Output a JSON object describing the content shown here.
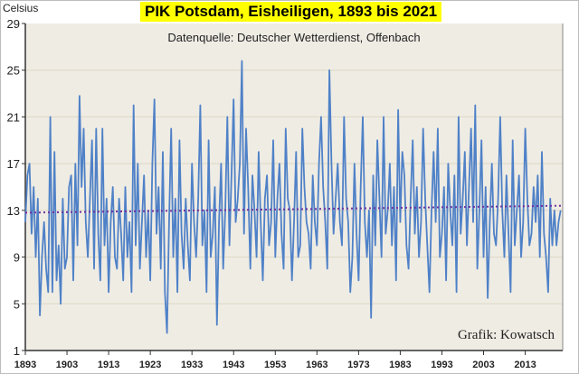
{
  "chart_data": {
    "type": "line",
    "title": "PIK Potsdam, Eisheiligen, 1893 bis 2021",
    "subtitle": "Datenquelle: Deutscher Wetterdienst, Offenbach",
    "credit": "Grafik: Kowatsch",
    "ylabel": "Celsius",
    "xlabel": "",
    "xlim": [
      1893,
      2022
    ],
    "ylim": [
      1,
      29
    ],
    "yticks": [
      1,
      5,
      9,
      13,
      17,
      21,
      25,
      29
    ],
    "xticks": [
      1893,
      1903,
      1913,
      1923,
      1933,
      1943,
      1953,
      1963,
      1973,
      1983,
      1993,
      2003,
      2013
    ],
    "grid": "horizontal",
    "colors": {
      "series": "#4f81c7",
      "trend": "#7030a0",
      "plot_bg": "#efece4",
      "title_bg": "#ffff00"
    },
    "series": [
      {
        "values": [
          12,
          16,
          17,
          11,
          15,
          9,
          14,
          4,
          9,
          12,
          8,
          6,
          21,
          6,
          18,
          7,
          10,
          5,
          14,
          8,
          9,
          15,
          16,
          7,
          17,
          10,
          22.8,
          15,
          20,
          12,
          9,
          14,
          19,
          8,
          20,
          11,
          7,
          20,
          10,
          14,
          6,
          12,
          15,
          9,
          8,
          14,
          11,
          7,
          15,
          9,
          12,
          6,
          22,
          10,
          17,
          8,
          12,
          16,
          9,
          13,
          7,
          17,
          22.5,
          11,
          15,
          8,
          18,
          6,
          2.5,
          12,
          20,
          9,
          14,
          6,
          19,
          11,
          8,
          14,
          10,
          7,
          17,
          12,
          9,
          14,
          22,
          10,
          13,
          6,
          19,
          9,
          11,
          15,
          3.2,
          12,
          17,
          8,
          13,
          21,
          10,
          16,
          22.5,
          12,
          14,
          17,
          25.8,
          11,
          20,
          15,
          8,
          16,
          13,
          9,
          18,
          12,
          7,
          14,
          16,
          10,
          12,
          19,
          9,
          14,
          17,
          11,
          8,
          20,
          14,
          13,
          7,
          12,
          18,
          9,
          10,
          20,
          15,
          12,
          11,
          8,
          16,
          12,
          10,
          17,
          21,
          15,
          12,
          8,
          25,
          17,
          11,
          14,
          17,
          12,
          10,
          21,
          14,
          12,
          6,
          9,
          17,
          11,
          7,
          15,
          21,
          12,
          9,
          13,
          3.8,
          16,
          10,
          19,
          14,
          9,
          21,
          11,
          13,
          17,
          10,
          15,
          7,
          21.6,
          12,
          18,
          16,
          10,
          8,
          14,
          19,
          11,
          15,
          9,
          12,
          20,
          14,
          10,
          6,
          13,
          18,
          12,
          20,
          9,
          11,
          15,
          7,
          17,
          13,
          10,
          16,
          6,
          21,
          11,
          14,
          18,
          10,
          15,
          20,
          12,
          22,
          8,
          13,
          19,
          9,
          15,
          5.5,
          12,
          17,
          11,
          10,
          14,
          21,
          13,
          9,
          16,
          11,
          6,
          19,
          10,
          13,
          16,
          9,
          12,
          20,
          14,
          10,
          11,
          15,
          12,
          16,
          9,
          18,
          11,
          9,
          6,
          14,
          10,
          13,
          10,
          12,
          13
        ]
      }
    ],
    "trendline": {
      "style": "dotted",
      "start": 12.8,
      "end": 13.4
    }
  }
}
